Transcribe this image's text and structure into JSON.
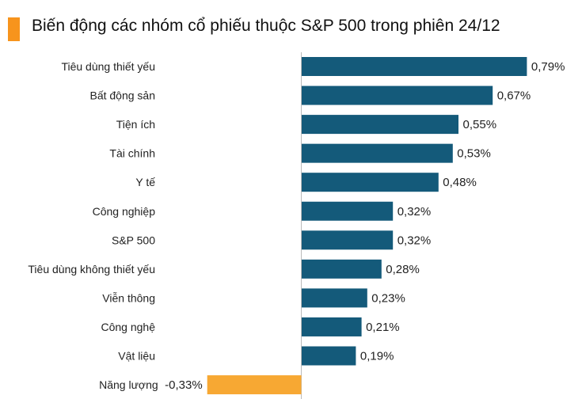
{
  "chart_data": {
    "type": "bar",
    "orientation": "horizontal",
    "title": "Biến động các nhóm cổ phiếu thuộc S&P 500 trong phiên 24/12",
    "categories": [
      "Tiêu dùng thiết yếu",
      "Bất động sản",
      "Tiện ích",
      "Tài chính",
      "Y tế",
      "Công nghiệp",
      "S&P 500",
      "Tiêu dùng không thiết yếu",
      "Viễn thông",
      "Công nghệ",
      "Vật liệu",
      "Năng lượng"
    ],
    "values": [
      0.79,
      0.67,
      0.55,
      0.53,
      0.48,
      0.32,
      0.32,
      0.28,
      0.23,
      0.21,
      0.19,
      -0.33
    ],
    "value_labels": [
      "0,79%",
      "0,67%",
      "0,55%",
      "0,53%",
      "0,48%",
      "0,32%",
      "0,32%",
      "0,28%",
      "0,23%",
      "0,21%",
      "0,19%",
      "-0,33%"
    ],
    "colors": {
      "positive": "#145a7a",
      "negative": "#f7a833",
      "title_accent": "#f7941d",
      "axis": "#bbbbbb"
    },
    "grid": false,
    "legend": "none"
  }
}
